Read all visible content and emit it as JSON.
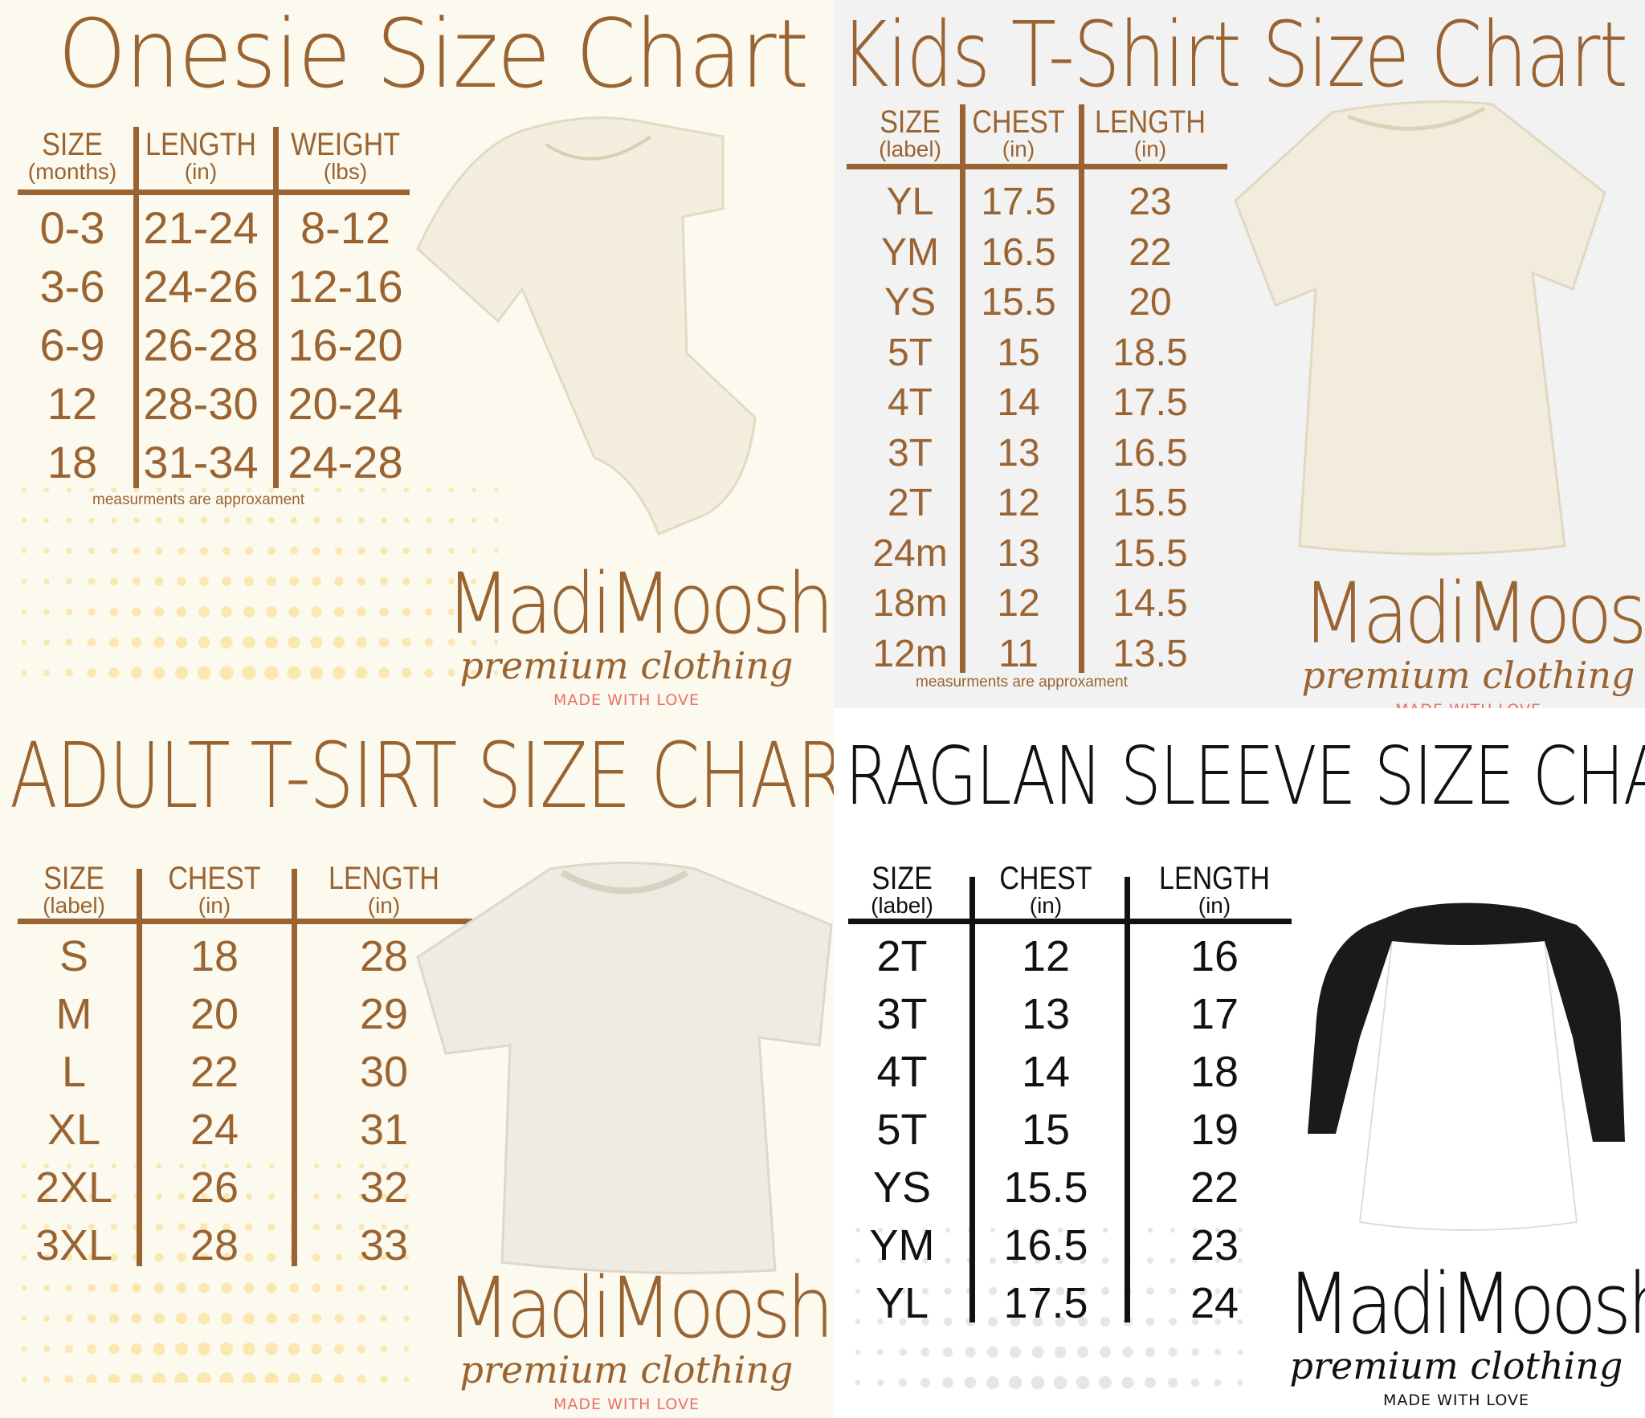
{
  "colors": {
    "brown": "#9a6432",
    "black": "#111111",
    "pink": "#e8706a",
    "cream": "#fcf9ee",
    "gray": "#f2f2f2",
    "white": "#ffffff"
  },
  "brand": {
    "name": "MadiMoosh",
    "tagline": "premium clothing",
    "motto": "MADE WITH LOVE"
  },
  "onesie": {
    "title": "Onesie Size Chart",
    "headers": [
      {
        "label": "SIZE",
        "unit": "(months)"
      },
      {
        "label": "LENGTH",
        "unit": "(in)"
      },
      {
        "label": "WEIGHT",
        "unit": "(lbs)"
      }
    ],
    "rows": [
      [
        "0-3",
        "21-24",
        "8-12"
      ],
      [
        "3-6",
        "24-26",
        "12-16"
      ],
      [
        "6-9",
        "26-28",
        "16-20"
      ],
      [
        "12",
        "28-30",
        "20-24"
      ],
      [
        "18",
        "31-34",
        "24-28"
      ]
    ],
    "note": "measurments are approxament",
    "image": "onesie-icon"
  },
  "kids": {
    "title": "Kids T-Shirt Size Chart",
    "headers": [
      {
        "label": "SIZE",
        "unit": "(label)"
      },
      {
        "label": "CHEST",
        "unit": "(in)"
      },
      {
        "label": "LENGTH",
        "unit": "(in)"
      }
    ],
    "rows": [
      [
        "YL",
        "17.5",
        "23"
      ],
      [
        "YM",
        "16.5",
        "22"
      ],
      [
        "YS",
        "15.5",
        "20"
      ],
      [
        "5T",
        "15",
        "18.5"
      ],
      [
        "4T",
        "14",
        "17.5"
      ],
      [
        "3T",
        "13",
        "16.5"
      ],
      [
        "2T",
        "12",
        "15.5"
      ],
      [
        "24m",
        "13",
        "15.5"
      ],
      [
        "18m",
        "12",
        "14.5"
      ],
      [
        "12m",
        "11",
        "13.5"
      ]
    ],
    "note": "measurments are approxament",
    "image": "tshirt-icon"
  },
  "adult": {
    "title": "ADULT T-SIRT SIZE CHART",
    "headers": [
      {
        "label": "SIZE",
        "unit": "(label)"
      },
      {
        "label": "CHEST",
        "unit": "(in)"
      },
      {
        "label": "LENGTH",
        "unit": "(in)"
      }
    ],
    "rows": [
      [
        "S",
        "18",
        "28"
      ],
      [
        "M",
        "20",
        "29"
      ],
      [
        "L",
        "22",
        "30"
      ],
      [
        "XL",
        "24",
        "31"
      ],
      [
        "2XL",
        "26",
        "32"
      ],
      [
        "3XL",
        "28",
        "33"
      ]
    ],
    "image": "tshirt-icon"
  },
  "raglan": {
    "title": "RAGLAN SLEEVE SIZE CHART",
    "headers": [
      {
        "label": "SIZE",
        "unit": "(label)"
      },
      {
        "label": "CHEST",
        "unit": "(in)"
      },
      {
        "label": "LENGTH",
        "unit": "(in)"
      }
    ],
    "rows": [
      [
        "2T",
        "12",
        "16"
      ],
      [
        "3T",
        "13",
        "17"
      ],
      [
        "4T",
        "14",
        "18"
      ],
      [
        "5T",
        "15",
        "19"
      ],
      [
        "YS",
        "15.5",
        "22"
      ],
      [
        "YM",
        "16.5",
        "23"
      ],
      [
        "YL",
        "17.5",
        "24"
      ]
    ],
    "image": "raglan-shirt-icon"
  }
}
